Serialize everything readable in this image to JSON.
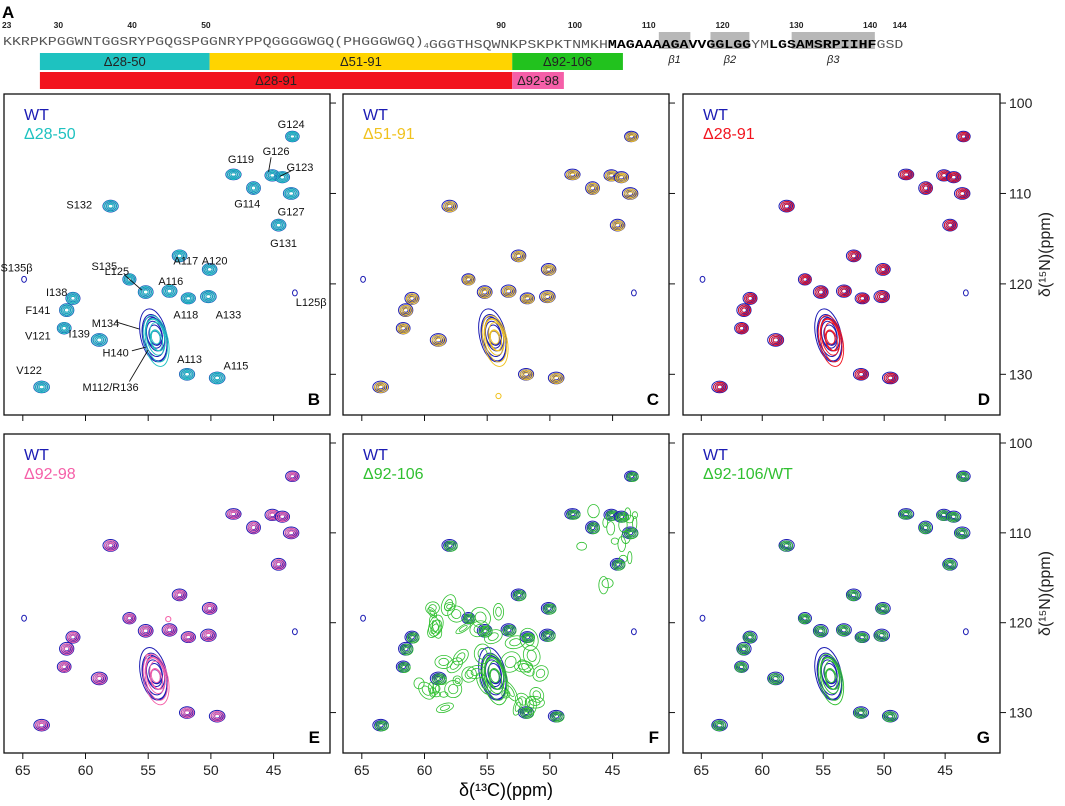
{
  "figure": {
    "panel_a_letter": "A",
    "sequence": {
      "residue_numbers": [
        {
          "label": "23",
          "index": 0
        },
        {
          "label": "30",
          "index": 7
        },
        {
          "label": "40",
          "index": 17
        },
        {
          "label": "50",
          "index": 27
        },
        {
          "label": "90",
          "index": 67
        },
        {
          "label": "100",
          "index": 77
        },
        {
          "label": "110",
          "index": 87
        },
        {
          "label": "120",
          "index": 97
        },
        {
          "label": "130",
          "index": 107
        },
        {
          "label": "140",
          "index": 117
        },
        {
          "label": "144",
          "index": 121
        }
      ],
      "segments": [
        {
          "text": "KKRPKPGGWNTGGSRYPGQGSPGGNRYPPQGGGGWGQ(PHGGGWGQ)",
          "bold": false
        },
        {
          "text": "4",
          "bold": false,
          "subscript": true
        },
        {
          "text": "GGGTHSQWNKPSKPKTNMKH",
          "bold": false
        },
        {
          "text": "MAGAAAAGAVVGGLGG",
          "bold": true
        },
        {
          "text": "YM",
          "bold": false
        },
        {
          "text": "LGSAMSRPIIHF",
          "bold": true
        },
        {
          "text": "GSD",
          "bold": false
        }
      ],
      "strand_boxes": [
        {
          "label": "β1",
          "start_index": 89,
          "end_index": 92
        },
        {
          "label": "β2",
          "start_index": 96,
          "end_index": 100
        },
        {
          "label": "β3",
          "start_index": 107,
          "end_index": 117
        }
      ],
      "deletions": [
        {
          "label": "Δ28-50",
          "start_index": 5,
          "end_index": 27,
          "row": 1,
          "color": "#1ec2c0"
        },
        {
          "label": "Δ51-91",
          "start_index": 28,
          "end_index": 68,
          "row": 1,
          "color": "#ffd400"
        },
        {
          "label": "Δ92-106",
          "start_index": 69,
          "end_index": 83,
          "row": 1,
          "color": "#22c21e"
        },
        {
          "label": "Δ28-91",
          "start_index": 5,
          "end_index": 68,
          "row": 2,
          "color": "#f2141e"
        },
        {
          "label": "Δ92-98",
          "start_index": 69,
          "end_index": 75,
          "row": 2,
          "color": "#f55fa8"
        }
      ]
    },
    "x_axis_label": "δ(¹³C)(ppm)",
    "y_axis_label": "δ(¹⁵N)(ppm)"
  },
  "chart_data": [
    {
      "panel": "B",
      "type": "scatter",
      "legend": [
        {
          "text": "WT",
          "color": "#1c1cb4"
        },
        {
          "text": "Δ28-50",
          "color": "#1ec2c0"
        }
      ],
      "x_range": [
        66.5,
        40.5
      ],
      "y_range": [
        99,
        134.5
      ],
      "xticks": [
        65,
        60,
        55,
        50,
        45
      ],
      "yticks": [
        100,
        110,
        120,
        130
      ],
      "show_x_ticklabels": false,
      "show_y_ticklabels": false,
      "reference_color": "#1c1cb4",
      "overlay_color": "#1ec2c0",
      "peak_labels": [
        {
          "text": "G124",
          "x": 43.6,
          "y": 102.3
        },
        {
          "text": "G119",
          "x": 47.6,
          "y": 106.2
        },
        {
          "text": "G126",
          "x": 44.8,
          "y": 105.3
        },
        {
          "text": "G123",
          "x": 42.9,
          "y": 107.1
        },
        {
          "text": "S132",
          "x": 60.5,
          "y": 111.2
        },
        {
          "text": "G114",
          "x": 47.1,
          "y": 111.1
        },
        {
          "text": "G127",
          "x": 43.6,
          "y": 112.0
        },
        {
          "text": "G131",
          "x": 44.2,
          "y": 115.5
        },
        {
          "text": "A117",
          "x": 52.0,
          "y": 117.4
        },
        {
          "text": "A120",
          "x": 49.7,
          "y": 117.4
        },
        {
          "text": "L125",
          "x": 57.5,
          "y": 118.6
        },
        {
          "text": "S135β",
          "x": 65.5,
          "y": 118.2
        },
        {
          "text": "S135",
          "x": 58.5,
          "y": 118.0
        },
        {
          "text": "A116",
          "x": 53.2,
          "y": 119.7
        },
        {
          "text": "I138",
          "x": 62.3,
          "y": 120.9
        },
        {
          "text": "L125β",
          "x": 42.0,
          "y": 122.0
        },
        {
          "text": "A118",
          "x": 52.0,
          "y": 123.4
        },
        {
          "text": "A133",
          "x": 48.6,
          "y": 123.4
        },
        {
          "text": "F141",
          "x": 63.8,
          "y": 122.9
        },
        {
          "text": "M134",
          "x": 58.4,
          "y": 124.3
        },
        {
          "text": "V121",
          "x": 63.8,
          "y": 125.7
        },
        {
          "text": "I139",
          "x": 60.5,
          "y": 125.5
        },
        {
          "text": "H140",
          "x": 57.6,
          "y": 127.6
        },
        {
          "text": "A113",
          "x": 51.7,
          "y": 128.3
        },
        {
          "text": "A115",
          "x": 48.0,
          "y": 129.0
        },
        {
          "text": "M112/R136",
          "x": 58.0,
          "y": 131.4
        },
        {
          "text": "V122",
          "x": 64.5,
          "y": 129.5
        }
      ]
    },
    {
      "panel": "C",
      "type": "scatter",
      "legend": [
        {
          "text": "WT",
          "color": "#1c1cb4"
        },
        {
          "text": "Δ51-91",
          "color": "#f0c21e"
        }
      ],
      "x_range": [
        66.5,
        40.5
      ],
      "y_range": [
        99,
        134.5
      ],
      "xticks": [
        65,
        60,
        55,
        50,
        45
      ],
      "yticks": [
        100,
        110,
        120,
        130
      ],
      "show_x_ticklabels": false,
      "show_y_ticklabels": false,
      "reference_color": "#1c1cb4",
      "overlay_color": "#f0c21e",
      "extra_overlay_peaks": [
        {
          "x": 54.1,
          "y": 132.4
        }
      ],
      "peak_labels": []
    },
    {
      "panel": "D",
      "type": "scatter",
      "legend": [
        {
          "text": "WT",
          "color": "#1c1cb4"
        },
        {
          "text": "Δ28-91",
          "color": "#f2141e"
        }
      ],
      "x_range": [
        66.5,
        40.5
      ],
      "y_range": [
        99,
        134.5
      ],
      "xticks": [
        65,
        60,
        55,
        50,
        45
      ],
      "yticks": [
        100,
        110,
        120,
        130
      ],
      "show_x_ticklabels": false,
      "show_y_ticklabels": true,
      "reference_color": "#1c1cb4",
      "overlay_color": "#f2141e",
      "peak_labels": []
    },
    {
      "panel": "E",
      "type": "scatter",
      "legend": [
        {
          "text": "WT",
          "color": "#1c1cb4"
        },
        {
          "text": "Δ92-98",
          "color": "#f55fa8"
        }
      ],
      "x_range": [
        66.5,
        40.5
      ],
      "y_range": [
        99,
        134.5
      ],
      "xticks": [
        65,
        60,
        55,
        50,
        45
      ],
      "yticks": [
        100,
        110,
        120,
        130
      ],
      "show_x_ticklabels": true,
      "show_y_ticklabels": false,
      "reference_color": "#1c1cb4",
      "overlay_color": "#f55fa8",
      "extra_overlay_peaks": [
        {
          "x": 53.4,
          "y": 119.6
        },
        {
          "x": 55.0,
          "y": 123.8
        }
      ],
      "peak_labels": []
    },
    {
      "panel": "F",
      "type": "scatter",
      "legend": [
        {
          "text": "WT",
          "color": "#1c1cb4"
        },
        {
          "text": "Δ92-106",
          "color": "#30c030"
        }
      ],
      "x_range": [
        66.5,
        40.5
      ],
      "y_range": [
        99,
        134.5
      ],
      "xticks": [
        65,
        60,
        55,
        50,
        45
      ],
      "yticks": [
        100,
        110,
        120,
        130
      ],
      "show_x_ticklabels": true,
      "show_y_ticklabels": false,
      "reference_color": "#1c1cb4",
      "overlay_color": "#30c030",
      "diffuse_overlay": true,
      "peak_labels": []
    },
    {
      "panel": "G",
      "type": "scatter",
      "legend": [
        {
          "text": "WT",
          "color": "#1c1cb4"
        },
        {
          "text": "Δ92-106/WT",
          "color": "#30c030"
        }
      ],
      "x_range": [
        66.5,
        40.5
      ],
      "y_range": [
        99,
        134.5
      ],
      "xticks": [
        65,
        60,
        55,
        50,
        45
      ],
      "yticks": [
        100,
        110,
        120,
        130
      ],
      "show_x_ticklabels": true,
      "show_y_ticklabels": true,
      "reference_color": "#1c1cb4",
      "overlay_color": "#30c030",
      "peak_labels": []
    }
  ],
  "wt_peaks": [
    {
      "id": "G124",
      "x": 43.5,
      "y": 103.7
    },
    {
      "id": "G119",
      "x": 48.2,
      "y": 107.9
    },
    {
      "id": "G126",
      "x": 45.1,
      "y": 108.0
    },
    {
      "id": "G123",
      "x": 44.3,
      "y": 108.2
    },
    {
      "id": "G114",
      "x": 46.6,
      "y": 109.4
    },
    {
      "id": "G127",
      "x": 43.6,
      "y": 110.0
    },
    {
      "id": "S132",
      "x": 58.0,
      "y": 111.4
    },
    {
      "id": "G131",
      "x": 44.6,
      "y": 113.5
    },
    {
      "id": "A117",
      "x": 52.5,
      "y": 116.9
    },
    {
      "id": "A120",
      "x": 50.1,
      "y": 118.4
    },
    {
      "id": "S135",
      "x": 56.5,
      "y": 119.5
    },
    {
      "id": "L125",
      "x": 55.2,
      "y": 120.9
    },
    {
      "id": "A116",
      "x": 53.3,
      "y": 120.8
    },
    {
      "id": "A118",
      "x": 51.8,
      "y": 121.6
    },
    {
      "id": "A133",
      "x": 50.2,
      "y": 121.4
    },
    {
      "id": "I138",
      "x": 61.0,
      "y": 121.6
    },
    {
      "id": "F141",
      "x": 61.5,
      "y": 122.9
    },
    {
      "id": "V121",
      "x": 61.7,
      "y": 124.9
    },
    {
      "id": "I139",
      "x": 58.9,
      "y": 126.2
    },
    {
      "id": "A113",
      "x": 51.9,
      "y": 130.0
    },
    {
      "id": "A115",
      "x": 49.5,
      "y": 130.4
    },
    {
      "id": "V122",
      "x": 63.5,
      "y": 131.4
    },
    {
      "id": "S135b",
      "x": 64.9,
      "y": 119.5
    },
    {
      "id": "L125b",
      "x": 43.3,
      "y": 121.0
    }
  ],
  "wt_cluster": {
    "ids": "M134 / H140 / M112 / R136",
    "center_x": 54.5,
    "center_y": 125.8,
    "span_x": 1.6,
    "span_y": 5.5
  },
  "diffuse_overlay_region": {
    "x_min": 50.5,
    "x_max": 60.0,
    "y_min": 118.0,
    "y_max": 129.5
  }
}
